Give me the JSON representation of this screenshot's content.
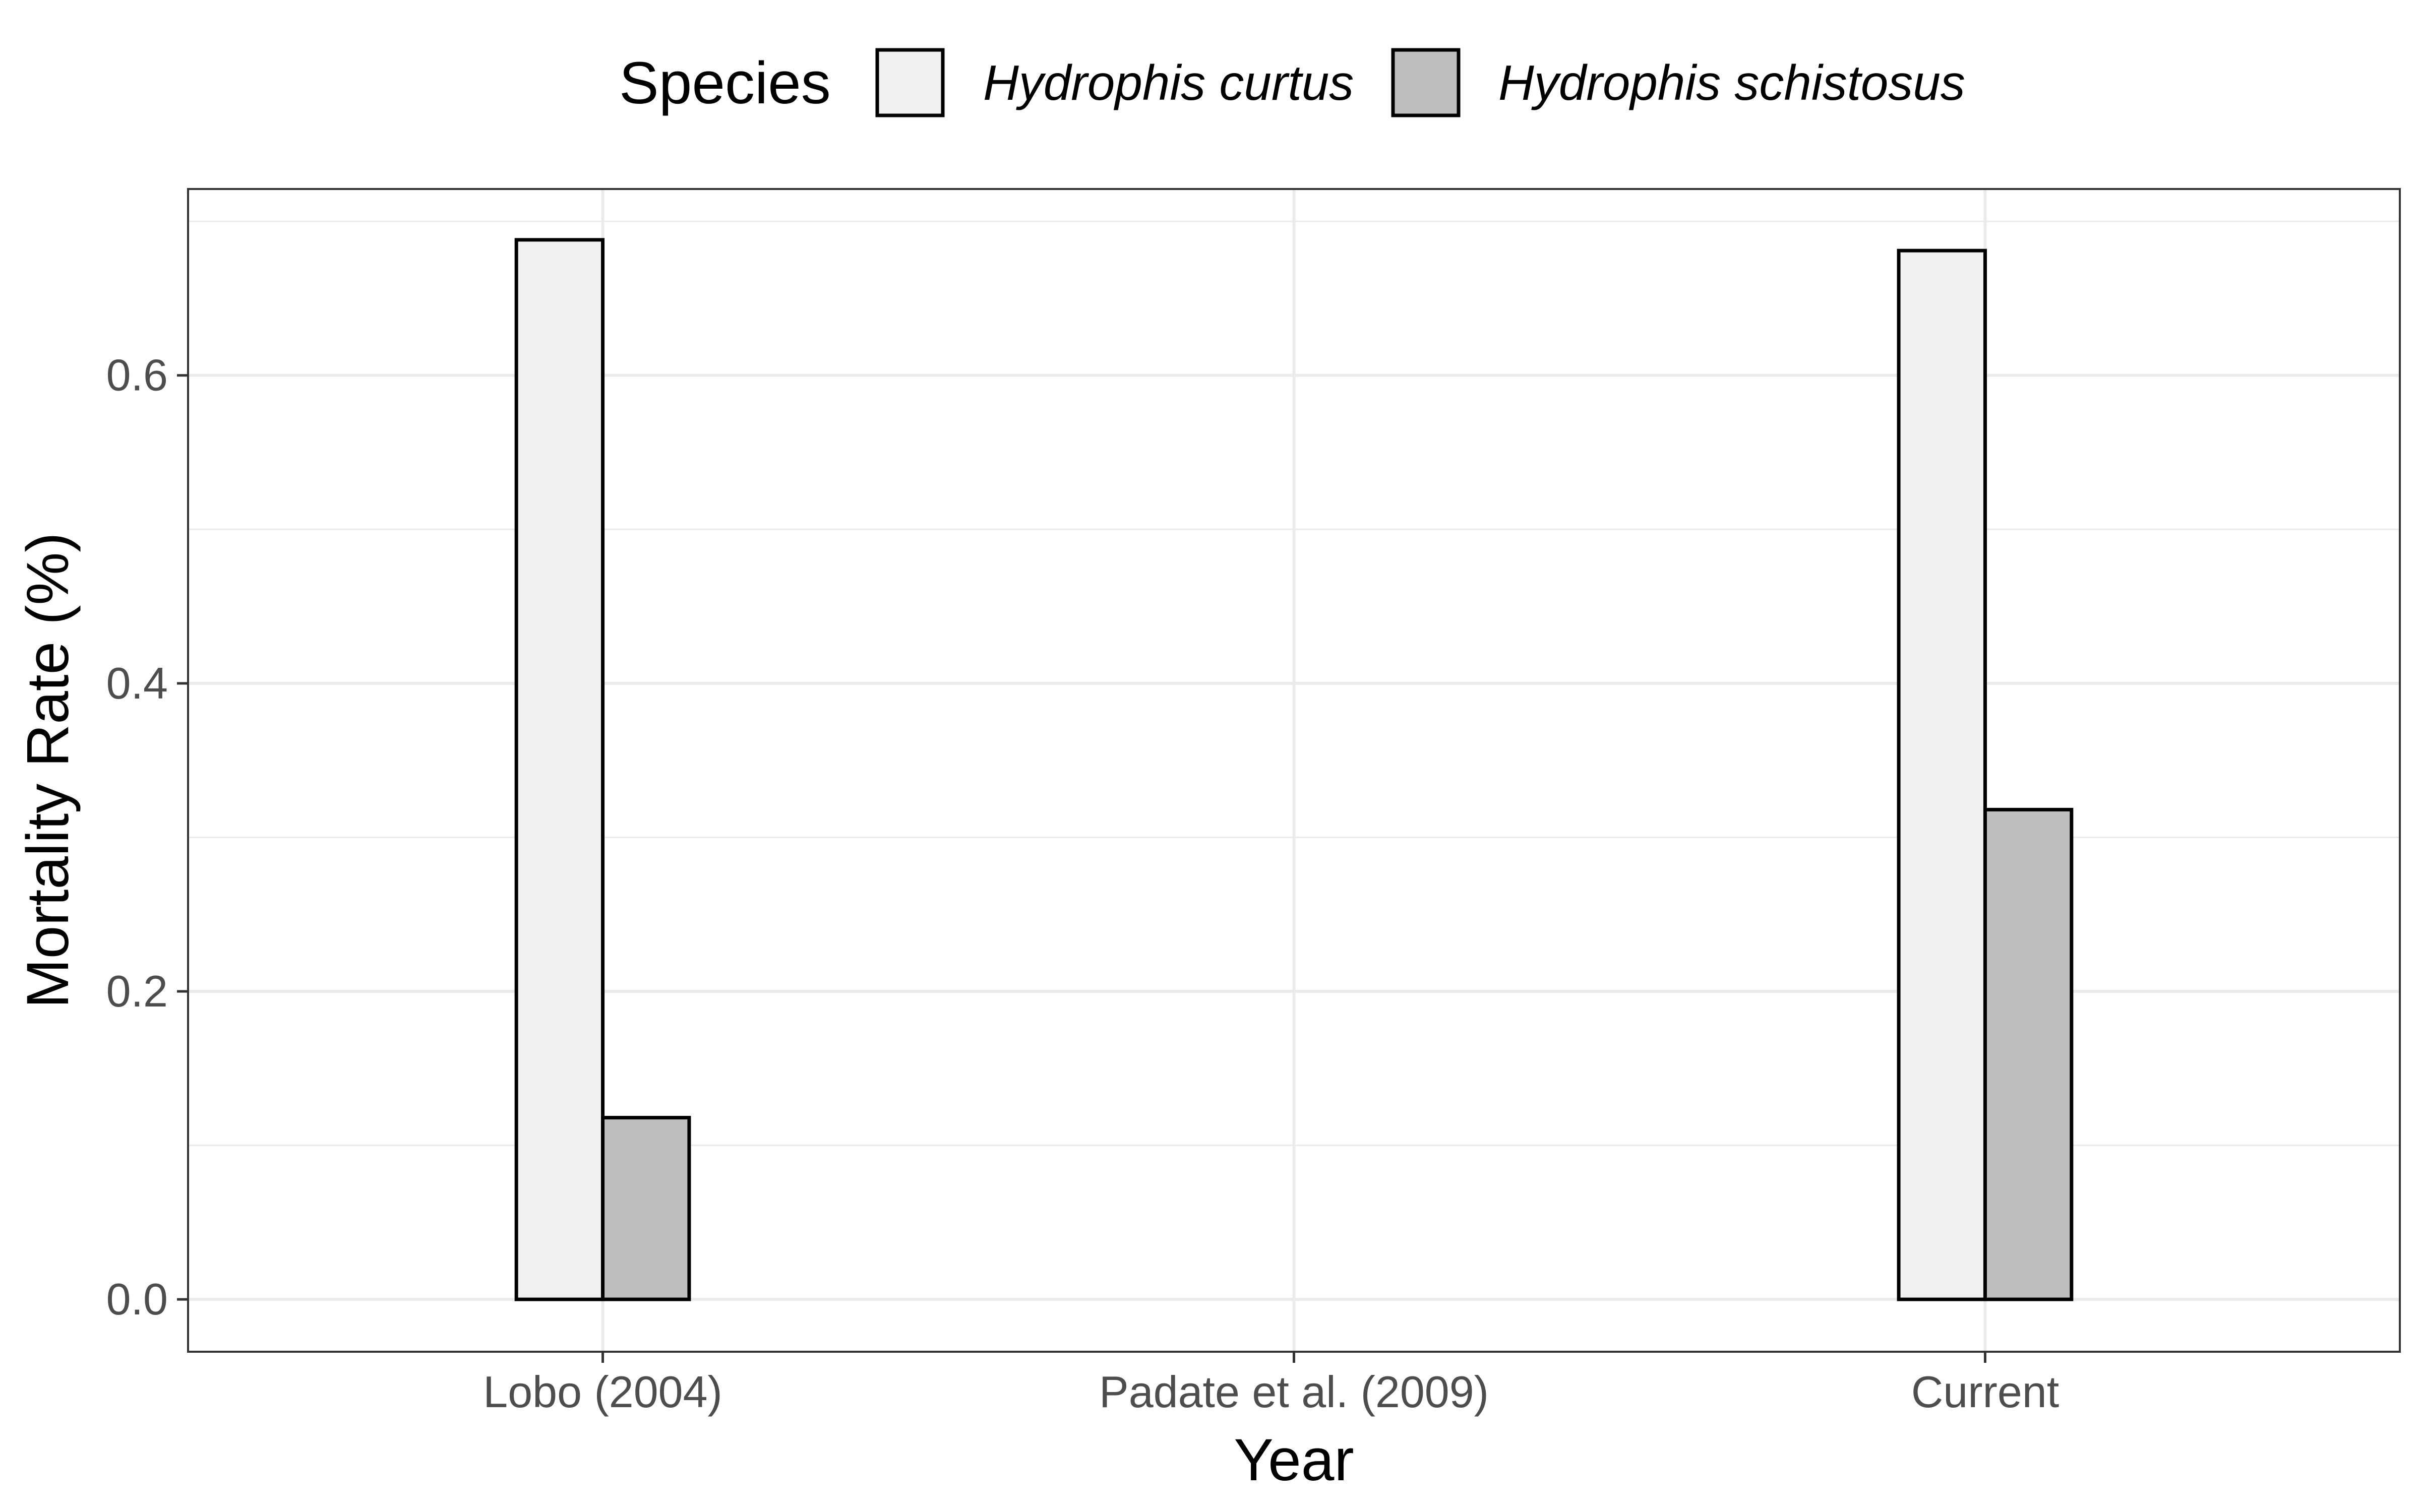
{
  "chart_data": {
    "type": "bar",
    "title": "",
    "xlabel": "Year",
    "ylabel": "Mortality Rate (%)",
    "categories": [
      "Lobo (2004)",
      "Padate et al. (2009)",
      "Current"
    ],
    "legend": {
      "title": "Species",
      "position": "top"
    },
    "series": [
      {
        "name": "Hydrophis curtus",
        "color": "#f0f0f0",
        "values": [
          0.688,
          null,
          0.681
        ]
      },
      {
        "name": "Hydrophis schistosus",
        "color": "#bebebe",
        "values": [
          0.118,
          null,
          0.318
        ]
      }
    ],
    "ylim": [
      -0.034,
      0.721
    ],
    "yticks": [
      0.0,
      0.2,
      0.4,
      0.6
    ],
    "ytick_labels": [
      "0.0",
      "0.2",
      "0.4",
      "0.6"
    ],
    "grid": true
  }
}
